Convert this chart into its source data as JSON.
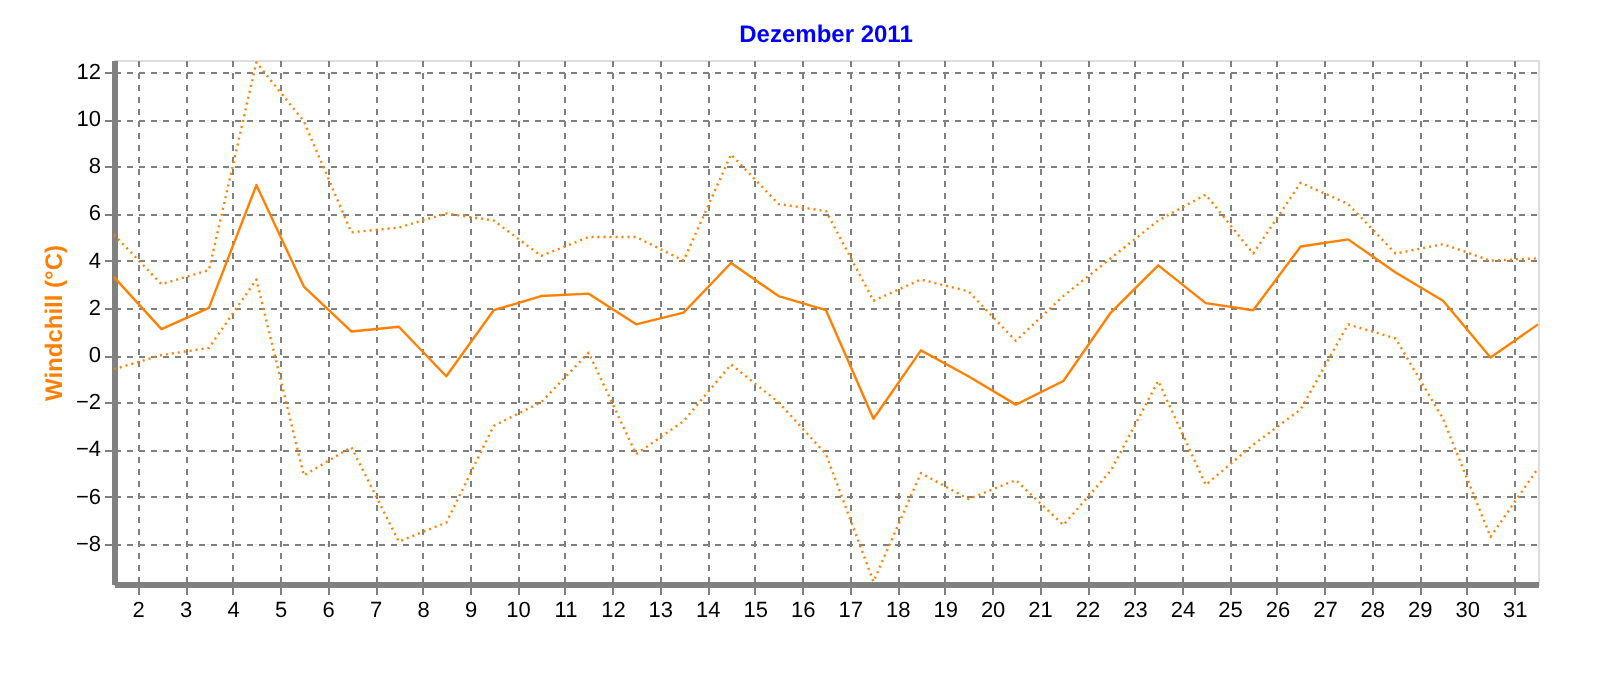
{
  "chart_data": {
    "type": "line",
    "title": "Dezember 2011",
    "ylabel": "Windchill  (°C)",
    "x": [
      1.5,
      2.5,
      3.5,
      4.5,
      5.5,
      6.5,
      7.5,
      8.5,
      9.5,
      10.5,
      11.5,
      12.5,
      13.5,
      14.5,
      15.5,
      16.5,
      17.5,
      18.5,
      19.5,
      20.5,
      21.5,
      22.5,
      23.5,
      24.5,
      25.5,
      26.5,
      27.5,
      28.5,
      29.5,
      30.5,
      31.5
    ],
    "series": [
      {
        "color": "#ff8000",
        "line_style": "dotted",
        "values": [
          5.1,
          3.0,
          3.6,
          12.4,
          9.9,
          5.2,
          5.4,
          6.0,
          5.7,
          4.2,
          5.0,
          5.0,
          4.0,
          8.5,
          6.4,
          6.1,
          2.3,
          3.2,
          2.7,
          0.6,
          2.5,
          4.1,
          5.7,
          6.8,
          4.3,
          7.3,
          6.4,
          4.3,
          4.7,
          4.0,
          4.1
        ]
      },
      {
        "color": "#ff8000",
        "line_style": "solid",
        "values": [
          3.3,
          1.1,
          2.0,
          7.2,
          2.9,
          1.0,
          1.2,
          -0.9,
          1.9,
          2.5,
          2.6,
          1.3,
          1.8,
          3.9,
          2.5,
          1.9,
          -2.7,
          0.2,
          -0.9,
          -2.1,
          -1.1,
          1.8,
          3.8,
          2.2,
          1.9,
          4.6,
          4.9,
          3.5,
          2.3,
          -0.1,
          1.3
        ]
      },
      {
        "color": "#ff8000",
        "line_style": "dotted",
        "values": [
          -0.6,
          0.0,
          0.3,
          3.2,
          -5.1,
          -3.9,
          -7.9,
          -7.1,
          -3.0,
          -2.0,
          0.1,
          -4.2,
          -2.8,
          -0.4,
          -2.0,
          -4.2,
          -9.6,
          -5.0,
          -6.1,
          -5.3,
          -7.2,
          -4.9,
          -1.1,
          -5.5,
          -3.8,
          -2.3,
          1.3,
          0.7,
          -2.7,
          -7.7,
          -4.8
        ]
      }
    ],
    "xlim": [
      1.5,
      31.5
    ],
    "xticks": [
      2,
      3,
      4,
      5,
      6,
      7,
      8,
      9,
      10,
      11,
      12,
      13,
      14,
      15,
      16,
      17,
      18,
      19,
      20,
      21,
      22,
      23,
      24,
      25,
      26,
      27,
      28,
      29,
      30,
      31
    ],
    "ylim": [
      -9.7,
      12.5
    ],
    "yticks": [
      -8,
      -6,
      -4,
      -2,
      0,
      2,
      4,
      6,
      8,
      10,
      12
    ],
    "grid": true
  }
}
